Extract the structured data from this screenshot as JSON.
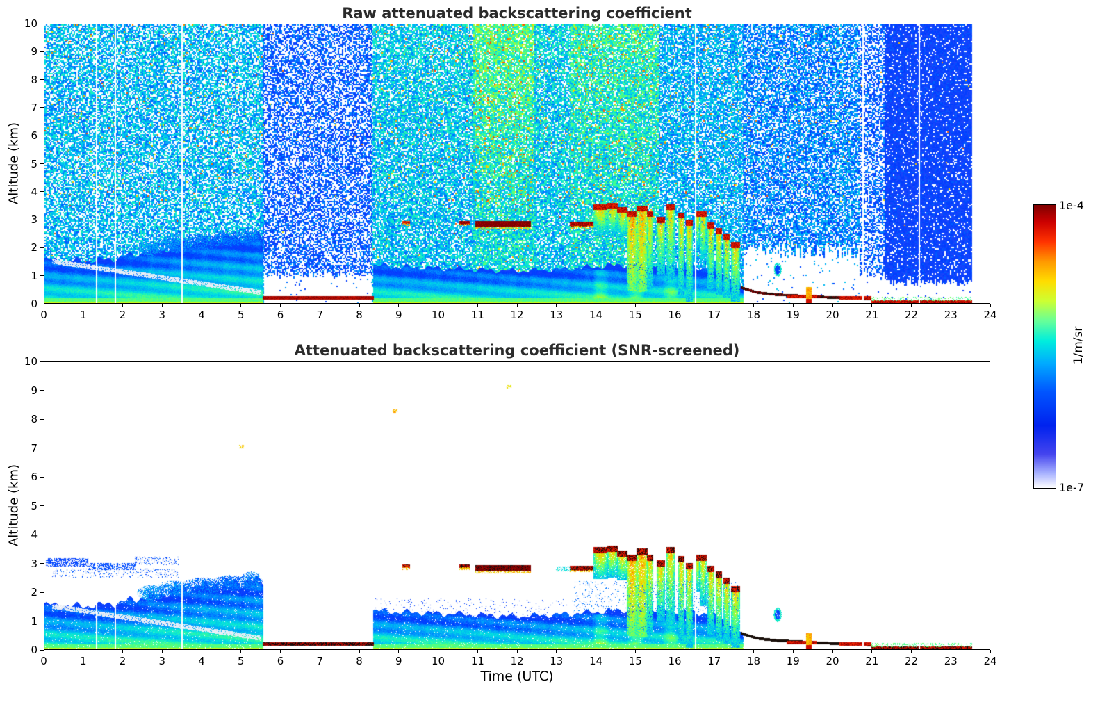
{
  "chart_data": {
    "type": "heatmap",
    "figure_kind": "lidar attenuated backscatter time-height curtain plots",
    "color_scale": {
      "type": "log",
      "min": 1e-07,
      "max": 0.0001,
      "min_label": "1e-7",
      "max_label": "1e-4",
      "unit_label": "1/m/sr",
      "palette": "white-blue-cyan-green-yellow-red-darkred (jet-like, white = below minimum)"
    },
    "panels": [
      {
        "title": "Raw attenuated backscattering coefficient",
        "xlabel": "",
        "ylabel": "Altitude (km)",
        "xlim": [
          0,
          24
        ],
        "ylim": [
          0,
          10
        ],
        "x_ticks": [
          0,
          1,
          2,
          3,
          4,
          5,
          6,
          7,
          8,
          9,
          10,
          11,
          12,
          13,
          14,
          15,
          16,
          17,
          18,
          19,
          20,
          21,
          22,
          23,
          24
        ],
        "y_ticks": [
          0,
          1,
          2,
          3,
          4,
          5,
          6,
          7,
          8,
          9,
          10
        ],
        "screened": false
      },
      {
        "title": "Attenuated backscattering coefficient (SNR-screened)",
        "xlabel": "Time (UTC)",
        "ylabel": "Altitude (km)",
        "xlim": [
          0,
          24
        ],
        "ylim": [
          0,
          10
        ],
        "x_ticks": [
          0,
          1,
          2,
          3,
          4,
          5,
          6,
          7,
          8,
          9,
          10,
          11,
          12,
          13,
          14,
          15,
          16,
          17,
          18,
          19,
          20,
          21,
          22,
          23,
          24
        ],
        "y_ticks": [
          0,
          1,
          2,
          3,
          4,
          5,
          6,
          7,
          8,
          9,
          10
        ],
        "screened": true
      }
    ],
    "scene": {
      "noise_regions": [
        {
          "t0": 0,
          "t1": 5.55,
          "base": 0.44,
          "spread": 0.11,
          "white": 0.3,
          "yp": 0.02,
          "topwarm": 0,
          "clear_below": 0
        },
        {
          "t0": 5.55,
          "t1": 8.32,
          "base": 0.32,
          "spread": 0.09,
          "white": 0.42,
          "yp": 0.004,
          "topwarm": 0,
          "clear_below": 1.05
        },
        {
          "t0": 8.32,
          "t1": 10.9,
          "base": 0.45,
          "spread": 0.11,
          "white": 0.22,
          "yp": 0.025,
          "topwarm": 0.02,
          "clear_below": 0
        },
        {
          "t0": 10.9,
          "t1": 12.45,
          "base": 0.5,
          "spread": 0.12,
          "white": 0.15,
          "yp": 0.09,
          "topwarm": 0.09,
          "clear_below": 0
        },
        {
          "t0": 12.45,
          "t1": 13.35,
          "base": 0.46,
          "spread": 0.11,
          "white": 0.2,
          "yp": 0.03,
          "topwarm": 0.02,
          "clear_below": 0
        },
        {
          "t0": 13.35,
          "t1": 15.6,
          "base": 0.49,
          "spread": 0.12,
          "white": 0.16,
          "yp": 0.06,
          "topwarm": 0.06,
          "clear_below": 0
        },
        {
          "t0": 15.6,
          "t1": 17.75,
          "base": 0.43,
          "spread": 0.1,
          "white": 0.25,
          "yp": 0.02,
          "topwarm": 0,
          "clear_below": 0
        },
        {
          "t0": 17.75,
          "t1": 20.7,
          "base": 0.38,
          "spread": 0.1,
          "white": 0.3,
          "yp": 0.01,
          "topwarm": 0,
          "clear_below": 1.9
        },
        {
          "t0": 20.7,
          "t1": 21.35,
          "base": 0.33,
          "spread": 0.09,
          "white": 0.45,
          "yp": 0.005,
          "topwarm": 0,
          "clear_below": 1.0
        },
        {
          "t0": 21.35,
          "t1": 23.55,
          "base": 0.27,
          "spread": 0.07,
          "white": 0.1,
          "yp": 0.002,
          "topwarm": 0,
          "clear_below": 0.75
        }
      ],
      "boundary_layer": {
        "segments": [
          [
            0,
            5.55
          ],
          [
            8.35,
            17.75
          ]
        ],
        "profile": [
          [
            0,
            1.55
          ],
          [
            1,
            1.5
          ],
          [
            1.5,
            1.55
          ],
          [
            2,
            1.65
          ],
          [
            2.5,
            1.8
          ],
          [
            3,
            1.95
          ],
          [
            3.5,
            2.1
          ],
          [
            4,
            2.2
          ],
          [
            4.5,
            2.3
          ],
          [
            5,
            2.35
          ],
          [
            5.55,
            2.4
          ],
          [
            8.35,
            1.35
          ],
          [
            9,
            1.3
          ],
          [
            10,
            1.25
          ],
          [
            11,
            1.2
          ],
          [
            12,
            1.15
          ],
          [
            13,
            1.2
          ],
          [
            14,
            1.3
          ],
          [
            15,
            1.4
          ],
          [
            16,
            1.35
          ],
          [
            16.8,
            1.25
          ],
          [
            17.3,
            1.05
          ],
          [
            17.75,
            0.5
          ]
        ],
        "streak": [
          [
            0.2,
            1.5
          ],
          [
            5.5,
            0.38
          ]
        ],
        "surface_green_z": 0.18
      },
      "blobs": [
        {
          "t": 2.7,
          "z": 1.95,
          "rt": 0.35,
          "rz": 0.28,
          "v": 0.4
        },
        {
          "t": 3.3,
          "z": 2.1,
          "rt": 0.45,
          "rz": 0.3,
          "v": 0.38
        },
        {
          "t": 4.0,
          "z": 2.2,
          "rt": 0.5,
          "rz": 0.3,
          "v": 0.36
        },
        {
          "t": 4.7,
          "z": 2.3,
          "rt": 0.45,
          "rz": 0.28,
          "v": 0.35
        },
        {
          "t": 5.25,
          "z": 2.4,
          "rt": 0.3,
          "rz": 0.3,
          "v": 0.37
        }
      ],
      "clouds": [
        {
          "t0": 9.1,
          "t1": 9.27,
          "z0": 2.85,
          "z1": 2.93,
          "v": 0.9
        },
        {
          "t0": 10.55,
          "t1": 10.8,
          "z0": 2.84,
          "z1": 2.94,
          "v": 0.96
        },
        {
          "t0": 10.95,
          "t1": 12.35,
          "z0": 2.72,
          "z1": 2.92,
          "v": 1.0
        },
        {
          "t0": 13.35,
          "t1": 13.95,
          "z0": 2.76,
          "z1": 2.9,
          "v": 0.95
        }
      ],
      "cells": [
        {
          "t0": 13.95,
          "t1": 14.3,
          "ztop": 3.55,
          "zbase": 2.45,
          "hot": 0
        },
        {
          "t0": 14.3,
          "t1": 14.55,
          "ztop": 3.6,
          "zbase": 2.5,
          "hot": 0
        },
        {
          "t0": 14.55,
          "t1": 14.8,
          "ztop": 3.45,
          "zbase": 2.4,
          "hot": 0
        },
        {
          "t0": 14.8,
          "t1": 15.05,
          "ztop": 3.3,
          "zbase": 0.45,
          "hot": 1
        },
        {
          "t0": 15.05,
          "t1": 15.3,
          "ztop": 3.5,
          "zbase": 0.4,
          "hot": 1
        },
        {
          "t0": 15.3,
          "t1": 15.45,
          "ztop": 3.3,
          "zbase": 0.5,
          "hot": 0
        },
        {
          "t0": 15.55,
          "t1": 15.75,
          "ztop": 3.1,
          "zbase": 1.0,
          "hot": 0
        },
        {
          "t0": 15.8,
          "t1": 16.0,
          "ztop": 3.55,
          "zbase": 0.8,
          "hot": 0
        },
        {
          "t0": 16.1,
          "t1": 16.25,
          "ztop": 3.25,
          "zbase": 0.3,
          "hot": 0
        },
        {
          "t0": 16.3,
          "t1": 16.45,
          "ztop": 3.0,
          "zbase": 0.05,
          "hot": 0
        },
        {
          "t0": 16.55,
          "t1": 16.63,
          "ztop": 3.3,
          "zbase": 2.0,
          "hot": 0
        },
        {
          "t0": 16.65,
          "t1": 16.8,
          "ztop": 3.3,
          "zbase": 1.5,
          "hot": 0
        },
        {
          "t0": 16.85,
          "t1": 17.0,
          "ztop": 2.9,
          "zbase": 0.5,
          "hot": 0
        },
        {
          "t0": 17.05,
          "t1": 17.2,
          "ztop": 2.7,
          "zbase": 0.3,
          "hot": 0
        },
        {
          "t0": 17.25,
          "t1": 17.4,
          "ztop": 2.5,
          "zbase": 0.2,
          "hot": 0
        },
        {
          "t0": 17.45,
          "t1": 17.65,
          "ztop": 2.2,
          "zbase": 0.05,
          "hot": 0
        }
      ],
      "ring_blob": {
        "t": 18.62,
        "z": 1.2,
        "rt": 0.1,
        "rz": 0.25
      },
      "surface": {
        "blocked_line": {
          "t0": 5.55,
          "t1": 8.35,
          "z0": 0.13,
          "z1": 0.23
        },
        "dark_polyline": [
          [
            17.7,
            0.55
          ],
          [
            18.1,
            0.38
          ],
          [
            18.6,
            0.3
          ],
          [
            19.2,
            0.26
          ],
          [
            20,
            0.2
          ],
          [
            21,
            0.15
          ]
        ],
        "red_segments": [
          {
            "t0": 18.85,
            "t1": 19.6,
            "z": 0.24,
            "th": 0.1
          },
          {
            "t0": 20.2,
            "t1": 21.0,
            "z": 0.18,
            "th": 0.09
          }
        ],
        "orange_streak": {
          "t0": 19.35,
          "t1": 19.47,
          "z0": 0,
          "z1": 0.55
        },
        "bottom_red": {
          "t0": 21.0,
          "t1": 23.55,
          "z0": 0,
          "z1": 0.09
        }
      },
      "remnants": [
        {
          "t0": 0.05,
          "t1": 1.1,
          "z0": 2.9,
          "z1": 3.15,
          "p": 0.55,
          "v": 0.3
        },
        {
          "t0": 1.1,
          "t1": 2.3,
          "z0": 2.78,
          "z1": 3.0,
          "p": 0.5,
          "v": 0.32
        },
        {
          "t0": 0.2,
          "t1": 3.4,
          "z0": 2.5,
          "z1": 2.8,
          "p": 0.12,
          "v": 0.33
        },
        {
          "t0": 2.3,
          "t1": 3.4,
          "z0": 2.95,
          "z1": 3.2,
          "p": 0.18,
          "v": 0.32
        },
        {
          "t0": 13.0,
          "t1": 13.35,
          "z0": 2.72,
          "z1": 2.88,
          "p": 0.4,
          "v": 0.5
        },
        {
          "t0": 8.4,
          "t1": 13.3,
          "z0": 1.15,
          "z1": 1.75,
          "p": 0.035,
          "v": 0.3
        },
        {
          "t0": 13.4,
          "t1": 17.6,
          "z0": 1.3,
          "z1": 2.35,
          "p": 0.06,
          "v": 0.36
        },
        {
          "t0": 4.95,
          "t1": 5.05,
          "z0": 7.0,
          "z1": 7.1,
          "p": 0.5,
          "v": 0.78
        },
        {
          "t0": 8.85,
          "t1": 8.95,
          "z0": 8.25,
          "z1": 8.35,
          "p": 0.5,
          "v": 0.8
        },
        {
          "t0": 11.75,
          "t1": 11.85,
          "z0": 9.1,
          "z1": 9.2,
          "p": 0.5,
          "v": 0.75
        }
      ],
      "white_lines": [
        1.32,
        1.79,
        3.48,
        16.53,
        20.78,
        22.2
      ],
      "no_data_after": 23.55
    }
  }
}
